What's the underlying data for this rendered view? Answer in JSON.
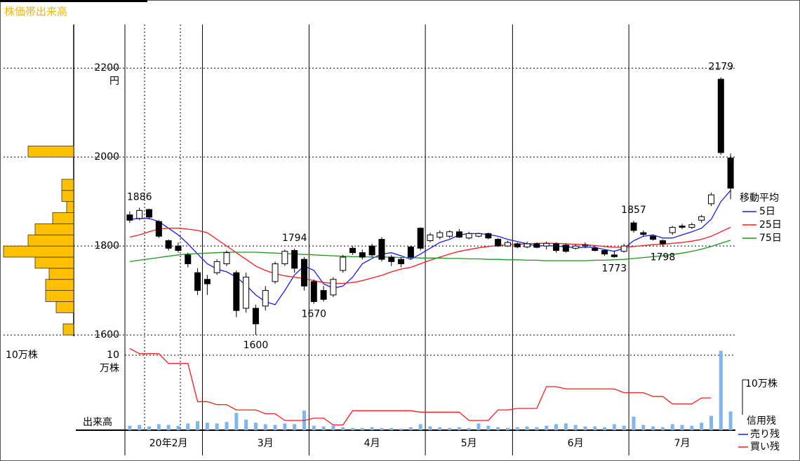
{
  "title": "株価帯出来高",
  "chart_data": [
    {
      "type": "candlestick",
      "categories": [
        null,
        null,
        null,
        null,
        "20年2月",
        null,
        null,
        null,
        null,
        null,
        null,
        null,
        null,
        null,
        "3月",
        null,
        null,
        null,
        null,
        null,
        null,
        null,
        null,
        null,
        null,
        "4月",
        null,
        null,
        null,
        null,
        null,
        null,
        null,
        null,
        null,
        "5月",
        null,
        null,
        null,
        null,
        null,
        null,
        null,
        null,
        null,
        null,
        "6月",
        null,
        null,
        null,
        null,
        null,
        null,
        null,
        null,
        null,
        null,
        "7月",
        null,
        null,
        null,
        null,
        null
      ],
      "open": [
        1870,
        1862,
        1882,
        1855,
        1812,
        1800,
        1780,
        1740,
        1725,
        1740,
        1760,
        1740,
        1660,
        1660,
        1665,
        1720,
        1760,
        1790,
        1770,
        1720,
        1700,
        1690,
        1745,
        1795,
        1785,
        1800,
        1815,
        1775,
        1770,
        1798,
        1840,
        1812,
        1820,
        1822,
        1832,
        1818,
        1822,
        1828,
        1815,
        1800,
        1805,
        1798,
        1805,
        1800,
        1805,
        1802,
        1795,
        1800,
        1795,
        1790,
        1780,
        1788,
        1852,
        1830,
        1822,
        1812,
        1830,
        1845,
        1842,
        1858,
        1895,
        2175,
        1998
      ],
      "high": [
        1878,
        1886,
        1884,
        1858,
        1815,
        1808,
        1785,
        1750,
        1735,
        1770,
        1790,
        1745,
        1740,
        1668,
        1710,
        1765,
        1792,
        1794,
        1775,
        1725,
        1710,
        1730,
        1780,
        1800,
        1792,
        1805,
        1820,
        1780,
        1775,
        1800,
        1842,
        1830,
        1835,
        1835,
        1838,
        1832,
        1830,
        1830,
        1818,
        1812,
        1808,
        1810,
        1808,
        1810,
        1808,
        1806,
        1804,
        1808,
        1800,
        1792,
        1790,
        1805,
        1857,
        1835,
        1825,
        1815,
        1845,
        1850,
        1852,
        1870,
        1920,
        2179,
        2008
      ],
      "low": [
        1852,
        1858,
        1860,
        1818,
        1790,
        1785,
        1752,
        1690,
        1690,
        1735,
        1755,
        1640,
        1650,
        1600,
        1655,
        1715,
        1755,
        1740,
        1700,
        1670,
        1675,
        1685,
        1740,
        1780,
        1770,
        1775,
        1765,
        1755,
        1752,
        1770,
        1790,
        1808,
        1815,
        1818,
        1818,
        1815,
        1820,
        1815,
        1798,
        1798,
        1795,
        1795,
        1795,
        1792,
        1785,
        1785,
        1792,
        1795,
        1788,
        1778,
        1773,
        1785,
        1830,
        1822,
        1812,
        1798,
        1825,
        1838,
        1838,
        1852,
        1890,
        2005,
        1905
      ],
      "close": [
        1858,
        1880,
        1865,
        1822,
        1795,
        1790,
        1760,
        1700,
        1715,
        1765,
        1785,
        1655,
        1730,
        1625,
        1700,
        1760,
        1788,
        1750,
        1710,
        1675,
        1680,
        1725,
        1775,
        1785,
        1775,
        1780,
        1770,
        1765,
        1760,
        1775,
        1795,
        1825,
        1830,
        1832,
        1820,
        1828,
        1828,
        1818,
        1800,
        1808,
        1798,
        1805,
        1797,
        1806,
        1790,
        1788,
        1800,
        1802,
        1790,
        1782,
        1776,
        1800,
        1835,
        1826,
        1815,
        1805,
        1842,
        1842,
        1848,
        1866,
        1915,
        2010,
        1930
      ],
      "up_color": "#ffffff",
      "down_color": "#000000",
      "ylim": [
        1597,
        2298
      ],
      "yticks": [
        1600,
        1800,
        2000,
        2200
      ],
      "y_unit": "円",
      "grid": true,
      "legend_title": "移動平均",
      "series": [
        {
          "name": "5日",
          "color": "#1a1aff",
          "values": [
            1860,
            1862,
            1862,
            1855,
            1840,
            1825,
            1805,
            1782,
            1760,
            1748,
            1742,
            1730,
            1712,
            1690,
            1675,
            1668,
            1700,
            1735,
            1755,
            1745,
            1715,
            1705,
            1710,
            1730,
            1760,
            1772,
            1782,
            1785,
            1778,
            1770,
            1782,
            1795,
            1808,
            1815,
            1825,
            1828,
            1828,
            1826,
            1822,
            1815,
            1810,
            1805,
            1800,
            1801,
            1800,
            1798,
            1796,
            1797,
            1797,
            1792,
            1788,
            1795,
            1812,
            1822,
            1825,
            1818,
            1818,
            1825,
            1832,
            1840,
            1860,
            1900,
            1925
          ]
        },
        {
          "name": "25日",
          "color": "#ff1a1a",
          "values": [
            1820,
            1825,
            1832,
            1838,
            1840,
            1840,
            1838,
            1835,
            1830,
            1815,
            1800,
            1785,
            1770,
            1755,
            1745,
            1738,
            1733,
            1730,
            1727,
            1722,
            1718,
            1716,
            1716,
            1718,
            1722,
            1728,
            1734,
            1742,
            1748,
            1752,
            1760,
            1768,
            1775,
            1782,
            1788,
            1792,
            1796,
            1799,
            1801,
            1803,
            1804,
            1805,
            1806,
            1806,
            1806,
            1805,
            1804,
            1803,
            1801,
            1799,
            1797,
            1797,
            1799,
            1801,
            1803,
            1804,
            1806,
            1808,
            1811,
            1815,
            1822,
            1832,
            1842
          ]
        },
        {
          "name": "75日",
          "color": "#1a9a1a",
          "values": [
            1765,
            1768,
            1771,
            1774,
            1777,
            1780,
            1782,
            1783,
            1784,
            1785,
            1786,
            1786,
            1786,
            1786,
            1785,
            1784,
            1783,
            1782,
            1781,
            1780,
            1779,
            1778,
            1777,
            1776,
            1776,
            1775,
            1775,
            1775,
            1774,
            1774,
            1773,
            1773,
            1773,
            1772,
            1772,
            1771,
            1771,
            1770,
            1770,
            1769,
            1769,
            1768,
            1768,
            1767,
            1767,
            1767,
            1767,
            1767,
            1768,
            1768,
            1769,
            1770,
            1772,
            1774,
            1776,
            1778,
            1781,
            1784,
            1788,
            1793,
            1799,
            1806,
            1813
          ]
        }
      ]
    },
    {
      "type": "bar",
      "label": "出来高",
      "color": "#7fb6f0",
      "values": [
        0.6,
        0.7,
        0.5,
        0.8,
        0.7,
        0.6,
        0.9,
        1.2,
        1.0,
        0.9,
        1.1,
        2.3,
        1.4,
        1.0,
        0.8,
        0.7,
        0.9,
        0.8,
        2.6,
        0.6,
        0.5,
        0.6,
        0.4,
        0.3,
        0.3,
        0.4,
        0.3,
        0.3,
        0.2,
        0.4,
        0.8,
        0.5,
        0.4,
        0.3,
        0.4,
        0.3,
        0.9,
        0.6,
        0.4,
        0.3,
        0.4,
        0.5,
        0.4,
        0.6,
        0.8,
        0.9,
        0.7,
        0.5,
        0.5,
        0.4,
        0.8,
        0.6,
        1.8,
        0.7,
        0.5,
        0.4,
        0.8,
        0.7,
        0.6,
        1.0,
        1.9,
        10.6,
        2.5
      ],
      "ylim": [
        0,
        11.4
      ],
      "yticks": [
        10
      ],
      "y_unit": "万株",
      "margin_title": "信用残",
      "margin_unit": "10万株",
      "margin_series": [
        {
          "name": "売り残",
          "color": "#1a1aff"
        },
        {
          "name": "買い残",
          "color": "#ff1a1a",
          "values": [
            10.9,
            10.2,
            10.2,
            10.2,
            8.9,
            8.9,
            8.9,
            3.8,
            3.8,
            3.4,
            3.4,
            2.7,
            2.7,
            2.7,
            2.2,
            2.2,
            1.3,
            1.3,
            1.3,
            1.6,
            1.6,
            0.7,
            0.7,
            2.6,
            2.6,
            2.6,
            2.6,
            2.6,
            2.6,
            2.6,
            2.4,
            2.4,
            2.4,
            2.4,
            2.4,
            1.3,
            1.3,
            1.3,
            2.7,
            2.7,
            2.9,
            2.9,
            2.9,
            5.8,
            5.8,
            5.5,
            5.5,
            5.5,
            5.5,
            5.5,
            5.5,
            5.0,
            5.0,
            5.0,
            4.5,
            4.5,
            3.5,
            3.5,
            3.5,
            4.3,
            4.3,
            null,
            null
          ]
        }
      ]
    },
    {
      "type": "histogram",
      "color": "#ffc000",
      "bins": [
        1600,
        1625,
        1650,
        1675,
        1700,
        1725,
        1750,
        1775,
        1800,
        1825,
        1850,
        1875,
        1900,
        1925,
        1950,
        1975,
        2000,
        2025
      ],
      "values": [
        1.5,
        0,
        2.5,
        4.0,
        4.0,
        3.5,
        5.5,
        10,
        6.5,
        5.5,
        3.0,
        1.0,
        1.7,
        1.7,
        0,
        0,
        6.5
      ],
      "xlim": [
        0,
        10
      ],
      "xlabel": "10万株"
    }
  ]
}
